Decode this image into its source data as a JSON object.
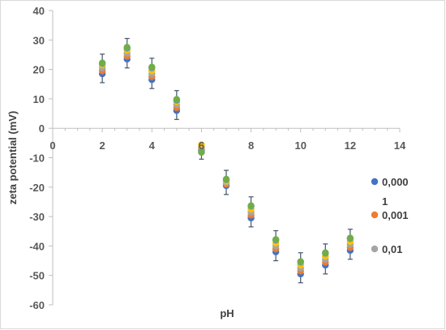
{
  "chart_data": {
    "type": "scatter",
    "xlabel": "pH",
    "ylabel": "zeta potential (mV)",
    "xlim": [
      0,
      14
    ],
    "ylim": [
      -60,
      40
    ],
    "xticks": [
      0,
      2,
      4,
      6,
      8,
      10,
      12,
      14
    ],
    "yticks": [
      40,
      30,
      20,
      10,
      0,
      -10,
      -20,
      -30,
      -40,
      -50,
      -60
    ],
    "grid": false,
    "error_bar": 3,
    "legend_position": "right",
    "legend": [
      {
        "line1": "0,000",
        "line2": "1",
        "color": "#4472c4"
      },
      {
        "line1": "0,001",
        "line2": "",
        "color": "#ed7d31"
      },
      {
        "line1": "0,01",
        "line2": "",
        "color": "#a5a5a5"
      }
    ],
    "series": [
      {
        "color": "#4472c4",
        "points": [
          [
            2,
            18.5
          ],
          [
            3,
            23.5
          ],
          [
            4,
            16.5
          ],
          [
            5,
            6
          ],
          [
            6,
            -7.5
          ],
          [
            7,
            -19.5
          ],
          [
            8,
            -30.5
          ],
          [
            9,
            -42
          ],
          [
            10,
            -49.5
          ],
          [
            11,
            -46.5
          ],
          [
            12,
            -41.5
          ]
        ]
      },
      {
        "color": "#ed7d31",
        "points": [
          [
            2,
            19.5
          ],
          [
            3,
            24.5
          ],
          [
            4,
            17.5
          ],
          [
            5,
            7
          ],
          [
            6,
            -6.8
          ],
          [
            7,
            -19
          ],
          [
            8,
            -29.5
          ],
          [
            9,
            -41
          ],
          [
            10,
            -48.5
          ],
          [
            11,
            -45.5
          ],
          [
            12,
            -40.5
          ]
        ]
      },
      {
        "color": "#a5a5a5",
        "points": [
          [
            2,
            20.5
          ],
          [
            3,
            25.5
          ],
          [
            4,
            18.5
          ],
          [
            5,
            8
          ],
          [
            6,
            -6.2
          ],
          [
            7,
            -18.5
          ],
          [
            8,
            -28.5
          ],
          [
            9,
            -40
          ],
          [
            10,
            -47.5
          ],
          [
            11,
            -44.5
          ],
          [
            12,
            -39.5
          ]
        ]
      },
      {
        "color": "#ffc000",
        "points": [
          [
            2,
            21.5
          ],
          [
            3,
            26.5
          ],
          [
            4,
            19.5
          ],
          [
            5,
            9
          ],
          [
            6,
            -5.6
          ],
          [
            7,
            -18
          ],
          [
            8,
            -27.5
          ],
          [
            9,
            -39
          ],
          [
            10,
            -46.5
          ],
          [
            11,
            -43.5
          ],
          [
            12,
            -38.5
          ]
        ]
      },
      {
        "color": "#5b9bd5",
        "points": [
          [
            2,
            22
          ],
          [
            3,
            27.2
          ],
          [
            4,
            20.5
          ],
          [
            5,
            9.5
          ],
          [
            6,
            -8
          ],
          [
            7,
            -17.5
          ],
          [
            8,
            -26.5
          ],
          [
            9,
            -38
          ],
          [
            10,
            -45.5
          ],
          [
            11,
            -42.5
          ],
          [
            12,
            -37.5
          ]
        ]
      },
      {
        "color": "#70ad47",
        "points": [
          [
            2,
            22.2
          ],
          [
            3,
            27.5
          ],
          [
            4,
            20.8
          ],
          [
            5,
            9.8
          ],
          [
            6,
            -8.2
          ],
          [
            7,
            -17.3
          ],
          [
            8,
            -26.3
          ],
          [
            9,
            -37.8
          ],
          [
            10,
            -45.3
          ],
          [
            11,
            -42.3
          ],
          [
            12,
            -37.3
          ]
        ]
      }
    ]
  }
}
